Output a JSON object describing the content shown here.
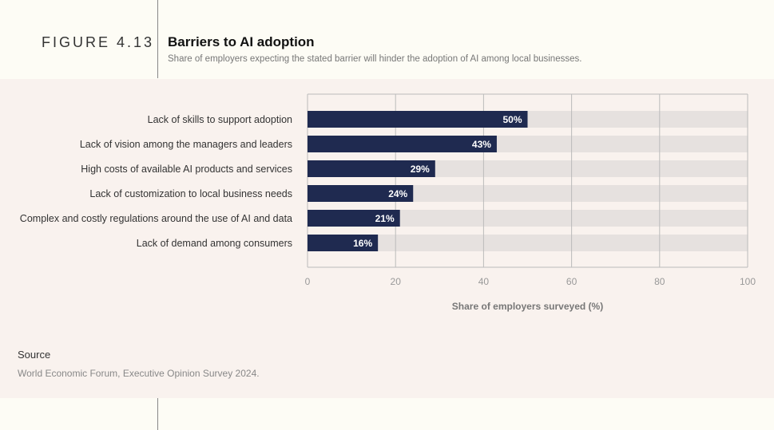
{
  "figure": {
    "number": "FIGURE 4.13",
    "title": "Barriers to AI adoption",
    "subtitle": "Share of employers expecting the stated barrier will hinder the adoption of AI among local businesses."
  },
  "source": {
    "label": "Source",
    "text": "World Economic Forum, Executive Opinion Survey 2024."
  },
  "colors": {
    "bar": "#1f2a50",
    "track": "#e6e1df",
    "grid": "#bbbbbb",
    "panel": "#f9f2ee"
  },
  "chart_data": {
    "type": "bar",
    "orientation": "horizontal",
    "categories": [
      "Lack of skills to support adoption",
      "Lack of vision among the managers and leaders",
      "High costs of available AI products and services",
      "Lack of customization to local business needs",
      "Complex and costly regulations around the use of AI and data",
      "Lack of demand among consumers"
    ],
    "values": [
      50,
      43,
      29,
      24,
      21,
      16
    ],
    "data_labels": [
      "50%",
      "43%",
      "29%",
      "24%",
      "21%",
      "16%"
    ],
    "xlabel": "Share of employers surveyed (%)",
    "ylabel": "",
    "xlim": [
      0,
      100
    ],
    "xticks": [
      0,
      20,
      40,
      60,
      80,
      100
    ],
    "grid": true,
    "legend": "none"
  }
}
